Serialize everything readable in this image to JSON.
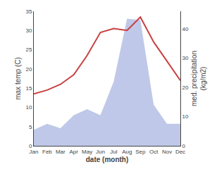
{
  "chart_data": {
    "type": "line",
    "categories": [
      "Jan",
      "Feb",
      "Mar",
      "Apr",
      "May",
      "Jun",
      "Jul",
      "Aug",
      "Sep",
      "Oct",
      "Nov",
      "Dec"
    ],
    "xlabel": "date (month)",
    "ylabel": "max temp (C)",
    "y2label": "med. precipitation\n(kg/m2)",
    "series": [
      {
        "type": "area",
        "axis": "y2",
        "color": "#bfc8e8",
        "values": [
          5.5,
          7.5,
          6.0,
          10.5,
          12.5,
          10.5,
          22.0,
          43.5,
          43.0,
          14.0,
          7.5,
          7.5
        ]
      },
      {
        "type": "line",
        "color": "#c94040",
        "values": [
          13.5,
          14.5,
          16.0,
          18.5,
          23.5,
          29.5,
          30.5,
          30.0,
          33.5,
          27.0,
          22.0,
          17.0
        ]
      }
    ],
    "ylim": [
      0,
      35
    ],
    "yticks": [
      0,
      5,
      10,
      15,
      20,
      25,
      30,
      35
    ],
    "y2lim": [
      0,
      46
    ],
    "y2ticks": [
      0,
      10,
      20,
      30,
      40
    ],
    "grid": false
  }
}
